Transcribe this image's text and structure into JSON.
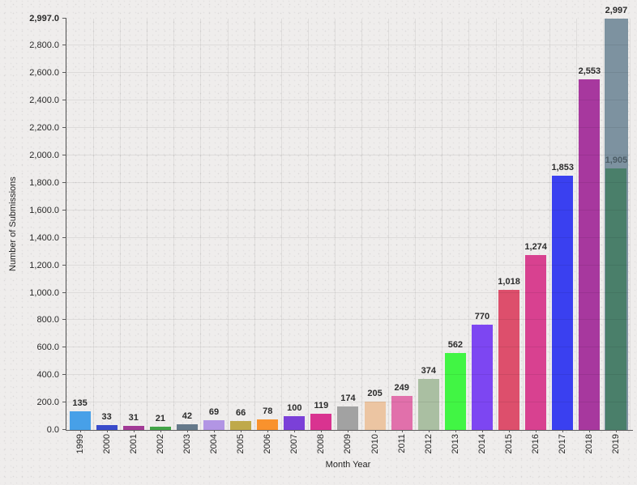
{
  "chart_data": {
    "type": "bar",
    "title": "",
    "xlabel": "Month Year",
    "ylabel": "Number of Submissions",
    "ylim": [
      0,
      2997
    ],
    "grid": true,
    "legend": false,
    "y_ticks": [
      {
        "value": 0,
        "label": "0.0"
      },
      {
        "value": 200,
        "label": "200.0"
      },
      {
        "value": 400,
        "label": "400.0"
      },
      {
        "value": 600,
        "label": "600.0"
      },
      {
        "value": 800,
        "label": "800.0"
      },
      {
        "value": 1000,
        "label": "1,000.0"
      },
      {
        "value": 1200,
        "label": "1,200.0"
      },
      {
        "value": 1400,
        "label": "1,400.0"
      },
      {
        "value": 1600,
        "label": "1,600.0"
      },
      {
        "value": 1800,
        "label": "1,800.0"
      },
      {
        "value": 2000,
        "label": "2,000.0"
      },
      {
        "value": 2200,
        "label": "2,200.0"
      },
      {
        "value": 2400,
        "label": "2,400.0"
      },
      {
        "value": 2600,
        "label": "2,600.0"
      },
      {
        "value": 2800,
        "label": "2,800.0"
      },
      {
        "value": 2997,
        "label": "2,997.0",
        "bold": true
      }
    ],
    "bars": [
      {
        "category": "1999",
        "value": 135,
        "label": "135",
        "color": "#47a0e8"
      },
      {
        "category": "2000",
        "value": 33,
        "label": "33",
        "color": "#3a4ccb"
      },
      {
        "category": "2001",
        "value": 31,
        "label": "31",
        "color": "#a23a96"
      },
      {
        "category": "2002",
        "value": 21,
        "label": "21",
        "color": "#42a447"
      },
      {
        "category": "2003",
        "value": 42,
        "label": "42",
        "color": "#65798a"
      },
      {
        "category": "2004",
        "value": 69,
        "label": "69",
        "color": "#b295e4"
      },
      {
        "category": "2005",
        "value": 66,
        "label": "66",
        "color": "#bfa94a"
      },
      {
        "category": "2006",
        "value": 78,
        "label": "78",
        "color": "#f9922d"
      },
      {
        "category": "2007",
        "value": 100,
        "label": "100",
        "color": "#7b40d8"
      },
      {
        "category": "2008",
        "value": 119,
        "label": "119",
        "color": "#d93390"
      },
      {
        "category": "2009",
        "value": 174,
        "label": "174",
        "color": "#a2a2a2"
      },
      {
        "category": "2010",
        "value": 205,
        "label": "205",
        "color": "#ecc5a2"
      },
      {
        "category": "2011",
        "value": 249,
        "label": "249",
        "color": "#e170ab"
      },
      {
        "category": "2012",
        "value": 374,
        "label": "374",
        "color": "#aabfa2"
      },
      {
        "category": "2013",
        "value": 562,
        "label": "562",
        "color": "#41f544"
      },
      {
        "category": "2014",
        "value": 770,
        "label": "770",
        "color": "#7d46f2"
      },
      {
        "category": "2015",
        "value": 1018,
        "label": "1,018",
        "color": "#dd4f6c"
      },
      {
        "category": "2016",
        "value": 1274,
        "label": "1,274",
        "color": "#d84190"
      },
      {
        "category": "2017",
        "value": 1853,
        "label": "1,853",
        "color": "#3a40f0"
      },
      {
        "category": "2018",
        "value": 2553,
        "label": "2,553",
        "color": "#a7389e"
      },
      {
        "category": "2019",
        "value": 1905,
        "label": "1,905",
        "color": "#4a7f6a",
        "overlay": {
          "value": 2997,
          "label": "2,997",
          "color": "#7d92a0"
        }
      }
    ]
  }
}
